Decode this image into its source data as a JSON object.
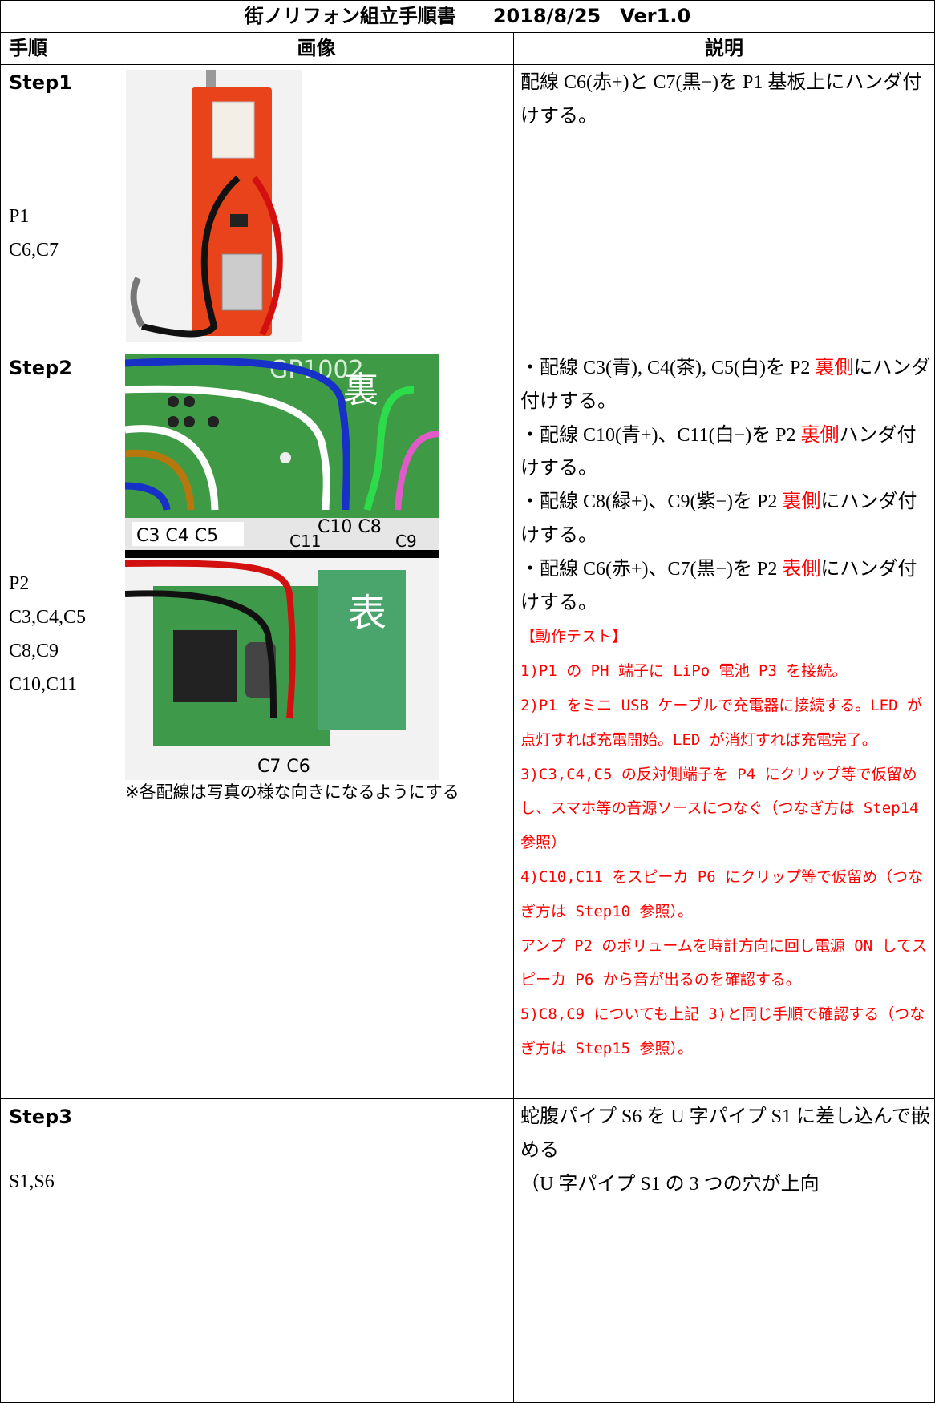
{
  "header": {
    "title": "街ノリフォン組立手順書",
    "date": "2018/8/25",
    "version": "Ver1.0"
  },
  "table": {
    "columns": [
      "手順",
      "画像",
      "説明"
    ],
    "rows": [
      {
        "step": "Step1",
        "parts": [
          "P1",
          "C6,C7"
        ],
        "description": [
          [
            {
              "text": "配線 C6(赤+)と C7(黒−)を P1 基板上にハンダ付けする。"
            }
          ]
        ]
      },
      {
        "step": "Step2",
        "parts": [
          "P2",
          "C3,C4,C5",
          "C8,C9",
          "C10,C11"
        ],
        "image_labels": {
          "back": "裏",
          "front": "表",
          "left_wires": "C3 C4 C5",
          "right_wires": "C10 C8",
          "c11": "C11",
          "c9": "C9",
          "front_wires": "C7 C6",
          "board": "GP1002"
        },
        "caption": "※各配線は写真の様な向きになるようにする",
        "description": [
          [
            {
              "text": "・配線 C3(青), C4(茶), C5(白)を P2 "
            },
            {
              "text": "裏側",
              "color": "#ff0000"
            },
            {
              "text": "にハンダ付けする。"
            }
          ],
          [
            {
              "text": "・配線 C10(青+)、C11(白−)を P2 "
            },
            {
              "text": "裏側",
              "color": "#ff0000"
            },
            {
              "text": "ハンダ付けする。"
            }
          ],
          [
            {
              "text": "・配線 C8(緑+)、C9(紫−)を P2 "
            },
            {
              "text": "裏側",
              "color": "#ff0000"
            },
            {
              "text": "にハンダ付けする。"
            }
          ],
          [
            {
              "text": "・配線 C6(赤+)、C7(黒−)を P2 "
            },
            {
              "text": "表側",
              "color": "#ff0000"
            },
            {
              "text": "にハンダ付けする。"
            }
          ],
          [
            {
              "text": "【動作テスト】",
              "color": "#ff0000",
              "style": "test"
            }
          ],
          [
            {
              "text": "1)P1 の PH 端子に LiPo 電池 P3 を接続。",
              "color": "#ff0000",
              "style": "test"
            }
          ],
          [
            {
              "text": "2)P1 をミニ USB ケーブルで充電器に接続する。LED が点灯すれば充電開始。LED が消灯すれば充電完了。",
              "color": "#ff0000",
              "style": "test"
            }
          ],
          [
            {
              "text": "3)C3,C4,C5 の反対側端子を P4 にクリップ等で仮留めし、スマホ等の音源ソースにつなぐ（つなぎ方は Step14 参照）",
              "color": "#ff0000",
              "style": "test"
            }
          ],
          [
            {
              "text": "4)C10,C11 をスピーカ P6 にクリップ等で仮留め（つなぎ方は Step10 参照）。",
              "color": "#ff0000",
              "style": "test"
            }
          ],
          [
            {
              "text": "アンプ P2 のボリュームを時計方向に回し電源 ON してスピーカ P6 から音が出るのを確認する。",
              "color": "#ff0000",
              "style": "test"
            }
          ],
          [
            {
              "text": "5)C8,C9 についても上記 3)と同じ手順で確認する（つなぎ方は Step15 参照）。",
              "color": "#ff0000",
              "style": "test"
            }
          ]
        ]
      },
      {
        "step": "Step3",
        "parts": [
          "S1,S6"
        ],
        "description": [
          [
            {
              "text": "蛇腹パイプ S6 を U 字パイプ S1 に差し込んで嵌める"
            }
          ],
          [
            {
              "text": "（U 字パイプ S1 の 3 つの穴が上向"
            }
          ]
        ]
      }
    ]
  }
}
